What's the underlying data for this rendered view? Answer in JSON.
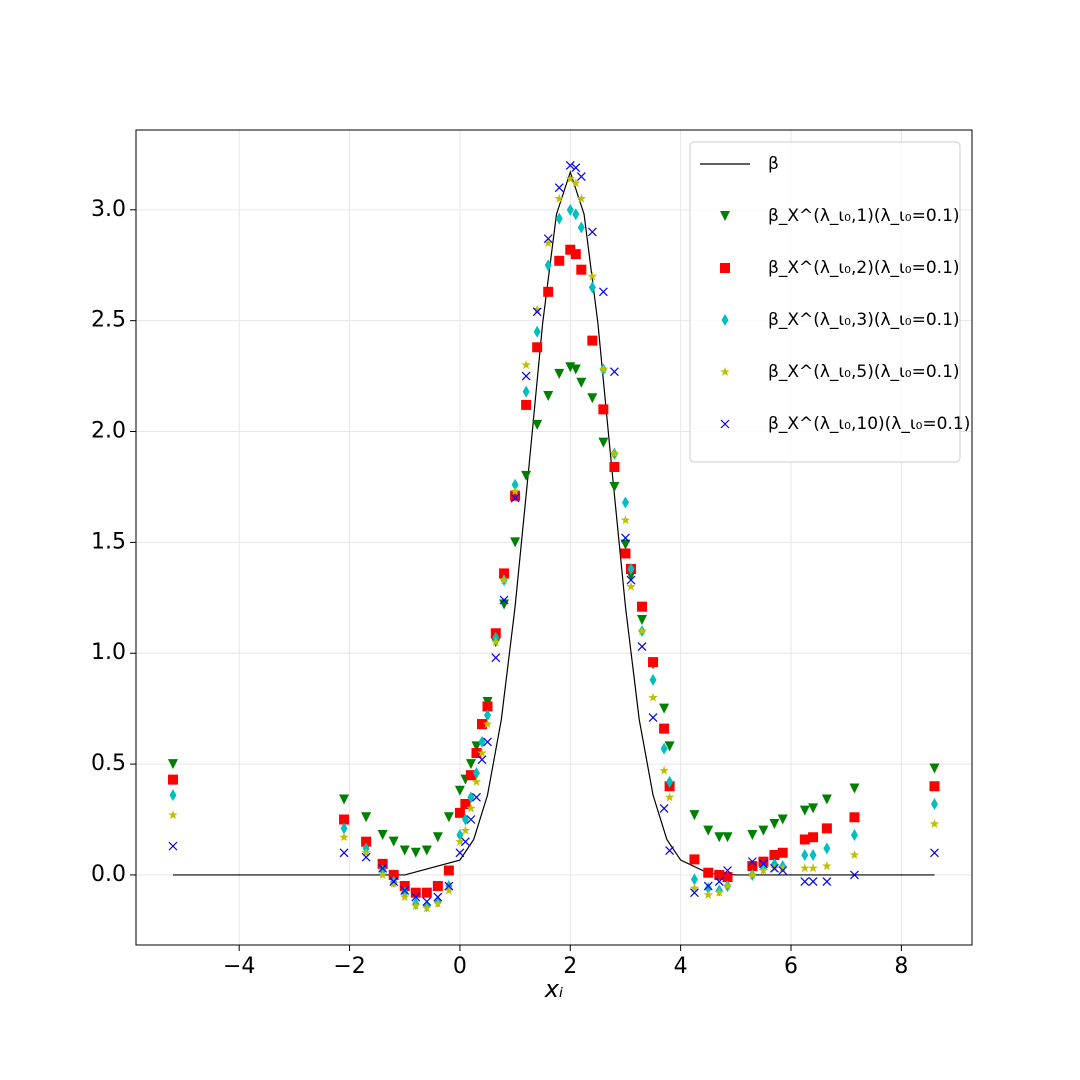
{
  "chart_data": {
    "type": "scatter",
    "x_label": "xᵢ",
    "xlim": [
      -5.87,
      9.28
    ],
    "ylim": [
      -0.316,
      3.36
    ],
    "xticks": [
      {
        "value": -4,
        "label": "−4"
      },
      {
        "value": -2,
        "label": "−2"
      },
      0,
      2,
      4,
      6,
      8
    ],
    "yticks": [
      {
        "value": 0,
        "label": "0.0"
      },
      0.5,
      {
        "value": 1,
        "label": "1.0"
      },
      1.5,
      {
        "value": 2,
        "label": "2.0"
      },
      2.5,
      {
        "value": 3,
        "label": "3.0"
      }
    ],
    "grid": true,
    "legend": "upper right",
    "x": [
      -5.2,
      -2.1,
      -1.7,
      -1.4,
      -1.2,
      -1.0,
      -0.8,
      -0.6,
      -0.4,
      -0.2,
      0.0,
      0.1,
      0.2,
      0.3,
      0.4,
      0.5,
      0.65,
      0.8,
      1.0,
      1.2,
      1.4,
      1.6,
      1.8,
      2.0,
      2.1,
      2.2,
      2.4,
      2.6,
      2.8,
      3.0,
      3.1,
      3.3,
      3.5,
      3.7,
      3.8,
      4.25,
      4.5,
      4.7,
      4.85,
      5.3,
      5.5,
      5.7,
      5.85,
      6.25,
      6.4,
      6.65,
      7.15,
      8.6
    ],
    "series": [
      {
        "name": "β",
        "type": "line",
        "color": "#000000",
        "x": [
          -5.2,
          -2,
          -1,
          0,
          0.25,
          0.5,
          0.75,
          1,
          1.25,
          1.5,
          1.75,
          2,
          2.25,
          2.5,
          2.75,
          3,
          3.25,
          3.5,
          3.75,
          4,
          4.5,
          5,
          8.6
        ],
        "values": [
          0,
          0,
          0,
          0.067,
          0.16,
          0.36,
          0.7,
          1.21,
          1.84,
          2.49,
          2.98,
          3.17,
          2.98,
          2.49,
          1.84,
          1.21,
          0.7,
          0.36,
          0.16,
          0.067,
          0.008,
          0,
          0
        ]
      },
      {
        "name": "β_X^(λ_ι₀,1)(λ_ι₀=0.1)",
        "marker": "v",
        "color": "#008000",
        "values": [
          0.5,
          0.34,
          0.26,
          0.18,
          0.15,
          0.11,
          0.1,
          0.11,
          0.17,
          0.26,
          0.38,
          0.43,
          0.5,
          0.58,
          0.68,
          0.78,
          1.05,
          1.22,
          1.5,
          1.8,
          2.03,
          2.16,
          2.26,
          2.29,
          2.28,
          2.22,
          2.15,
          1.95,
          1.75,
          1.49,
          1.35,
          1.15,
          0.95,
          0.75,
          0.58,
          0.27,
          0.2,
          0.17,
          0.17,
          0.18,
          0.2,
          0.23,
          0.25,
          0.29,
          0.3,
          0.34,
          0.39,
          0.48
        ]
      },
      {
        "name": "β_X^(λ_ι₀,2)(λ_ι₀=0.1)",
        "marker": "s",
        "color": "#ff0000",
        "values": [
          0.43,
          0.25,
          0.15,
          0.05,
          0.0,
          -0.05,
          -0.08,
          -0.08,
          -0.05,
          0.02,
          0.28,
          0.32,
          0.45,
          0.55,
          0.68,
          0.76,
          1.09,
          1.36,
          1.71,
          2.12,
          2.38,
          2.63,
          2.77,
          2.82,
          2.8,
          2.73,
          2.41,
          2.1,
          1.84,
          1.45,
          1.38,
          1.21,
          0.96,
          0.66,
          0.4,
          0.07,
          0.01,
          0.0,
          -0.01,
          0.04,
          0.06,
          0.09,
          0.1,
          0.16,
          0.17,
          0.21,
          0.26,
          0.4
        ]
      },
      {
        "name": "β_X^(λ_ι₀,3)(λ_ι₀=0.1)",
        "marker": "d",
        "color": "#00bfbf",
        "values": [
          0.36,
          0.21,
          0.12,
          0.02,
          -0.03,
          -0.08,
          -0.13,
          -0.14,
          -0.12,
          -0.05,
          0.18,
          0.25,
          0.35,
          0.46,
          0.6,
          0.72,
          1.07,
          1.33,
          1.76,
          2.18,
          2.45,
          2.75,
          2.96,
          3.0,
          2.98,
          2.92,
          2.65,
          2.28,
          1.9,
          1.68,
          1.38,
          1.1,
          0.88,
          0.57,
          0.42,
          -0.02,
          -0.06,
          -0.07,
          -0.05,
          0.0,
          0.03,
          0.05,
          0.04,
          0.09,
          0.09,
          0.12,
          0.18,
          0.32
        ]
      },
      {
        "name": "β_X^(λ_ι₀,5)(λ_ι₀=0.1)",
        "marker": "*",
        "color": "#bfbf00",
        "values": [
          0.27,
          0.17,
          0.1,
          0.0,
          -0.04,
          -0.1,
          -0.14,
          -0.15,
          -0.13,
          -0.07,
          0.15,
          0.2,
          0.3,
          0.42,
          0.55,
          0.68,
          1.05,
          1.33,
          1.73,
          2.3,
          2.55,
          2.85,
          3.05,
          3.14,
          3.12,
          3.05,
          2.7,
          2.28,
          1.9,
          1.6,
          1.3,
          1.1,
          0.8,
          0.47,
          0.35,
          -0.06,
          -0.09,
          -0.08,
          -0.05,
          0.0,
          0.02,
          0.03,
          0.03,
          0.03,
          0.03,
          0.04,
          0.09,
          0.23
        ]
      },
      {
        "name": "β_X^(λ_ι₀,10)(λ_ι₀=0.1)",
        "marker": "x",
        "color": "#0000ff",
        "values": [
          0.13,
          0.1,
          0.08,
          0.03,
          -0.03,
          -0.07,
          -0.1,
          -0.12,
          -0.1,
          -0.05,
          0.1,
          0.15,
          0.25,
          0.35,
          0.52,
          0.6,
          0.98,
          1.24,
          1.7,
          2.25,
          2.54,
          2.87,
          3.1,
          3.2,
          3.19,
          3.15,
          2.9,
          2.63,
          2.27,
          1.52,
          1.33,
          1.03,
          0.71,
          0.3,
          0.11,
          -0.08,
          -0.05,
          -0.03,
          0.02,
          0.06,
          0.05,
          0.03,
          0.02,
          -0.03,
          -0.03,
          -0.03,
          0.0,
          0.1
        ]
      }
    ]
  }
}
